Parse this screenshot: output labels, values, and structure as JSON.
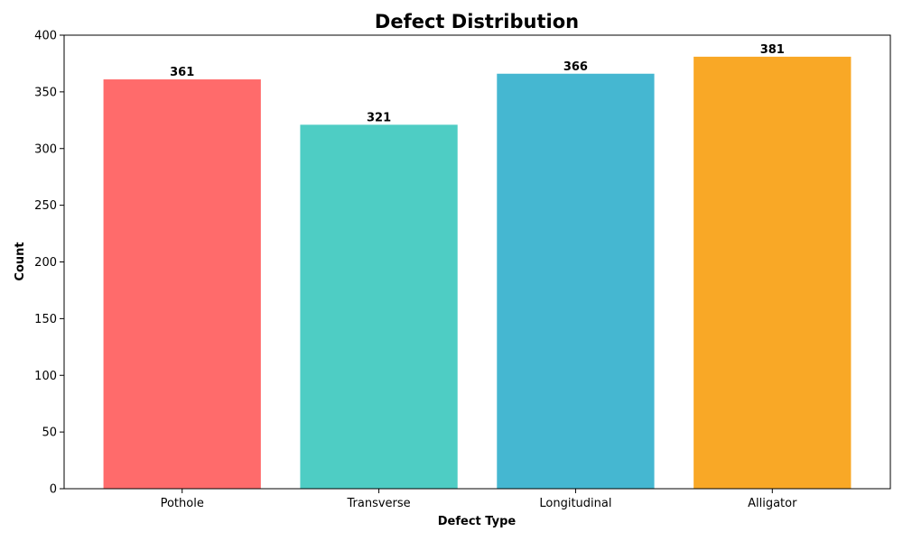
{
  "chart_data": {
    "type": "bar",
    "title": "Defect Distribution",
    "xlabel": "Defect Type",
    "ylabel": "Count",
    "categories": [
      "Pothole",
      "Transverse",
      "Longitudinal",
      "Alligator"
    ],
    "values": [
      361,
      321,
      366,
      381
    ],
    "data_labels": [
      "361",
      "321",
      "366",
      "381"
    ],
    "colors": [
      "#FF6B6B",
      "#4ECDC4",
      "#45B7D1",
      "#F9A826"
    ],
    "ylim": [
      0,
      400
    ],
    "yticks": [
      0,
      50,
      100,
      150,
      200,
      250,
      300,
      350,
      400
    ],
    "grid": false,
    "legend": "none"
  }
}
